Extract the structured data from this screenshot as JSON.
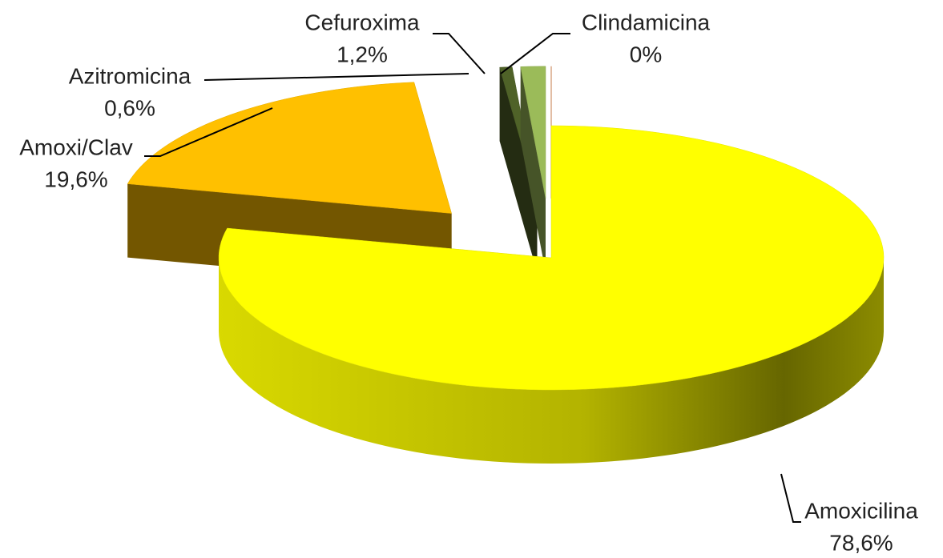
{
  "chart_data": {
    "type": "pie",
    "categories": [
      "Amoxicilina",
      "Amoxi/Clav",
      "Azitromicina",
      "Cefuroxima",
      "Clindamicina"
    ],
    "values": [
      78.6,
      19.6,
      0.6,
      1.2,
      0
    ],
    "value_labels": [
      "78,6%",
      "19,6%",
      "0,6%",
      "1,2%",
      "0%"
    ],
    "colors": [
      "#ffff00",
      "#ffc000",
      "#4f6228",
      "#9bbb59",
      "#c55a11"
    ]
  }
}
